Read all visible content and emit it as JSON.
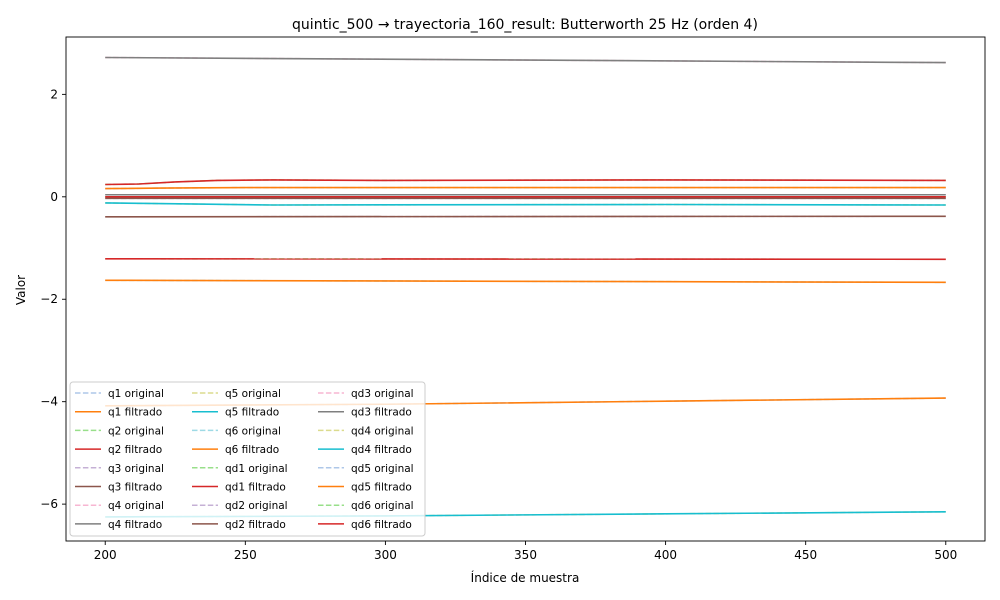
{
  "chart_data": {
    "type": "line",
    "title": "quintic_500 → trayectoria_160_result: Butterworth 25 Hz (orden 4)",
    "xlabel": "Índice de muestra",
    "ylabel": "Valor",
    "xlim": [
      186,
      514
    ],
    "ylim": [
      -6.72,
      3.12
    ],
    "xticks": [
      200,
      250,
      300,
      350,
      400,
      450,
      500
    ],
    "yticks": [
      -6,
      -4,
      -2,
      0,
      2
    ],
    "ytick_labels": [
      "−6",
      "−4",
      "−2",
      "0",
      "2"
    ],
    "grid": false,
    "legend": {
      "placement": "lower-left",
      "columns": 3
    },
    "series": [
      {
        "name": "q1 original",
        "color": "#aec7e8",
        "dashed": true,
        "x": [
          200,
          300,
          400,
          500
        ],
        "values": [
          -4.08,
          -4.05,
          -3.99,
          -3.93
        ]
      },
      {
        "name": "q1 filtrado",
        "color": "#ff7f0e",
        "dashed": false,
        "x": [
          200,
          300,
          400,
          500
        ],
        "values": [
          -4.08,
          -4.05,
          -3.99,
          -3.93
        ]
      },
      {
        "name": "q2 original",
        "color": "#98df8a",
        "dashed": true,
        "x": [
          200,
          500
        ],
        "values": [
          -1.21,
          -1.22
        ]
      },
      {
        "name": "q2 filtrado",
        "color": "#d62728",
        "dashed": false,
        "x": [
          200,
          500
        ],
        "values": [
          -1.21,
          -1.22
        ]
      },
      {
        "name": "q3 original",
        "color": "#c5b0d5",
        "dashed": true,
        "x": [
          200,
          500
        ],
        "values": [
          -0.39,
          -0.38
        ]
      },
      {
        "name": "q3 filtrado",
        "color": "#8c564b",
        "dashed": false,
        "x": [
          200,
          500
        ],
        "values": [
          -0.39,
          -0.38
        ]
      },
      {
        "name": "q4 original",
        "color": "#f7b6d2",
        "dashed": true,
        "x": [
          200,
          500
        ],
        "values": [
          2.72,
          2.62
        ]
      },
      {
        "name": "q4 filtrado",
        "color": "#7f7f7f",
        "dashed": false,
        "x": [
          200,
          500
        ],
        "values": [
          2.72,
          2.62
        ]
      },
      {
        "name": "q5 original",
        "color": "#dbdb8d",
        "dashed": true,
        "x": [
          200,
          300,
          400,
          500
        ],
        "values": [
          -6.25,
          -6.23,
          -6.19,
          -6.15
        ]
      },
      {
        "name": "q5 filtrado",
        "color": "#17becf",
        "dashed": false,
        "x": [
          200,
          300,
          400,
          500
        ],
        "values": [
          -6.25,
          -6.23,
          -6.19,
          -6.15
        ]
      },
      {
        "name": "q6 original",
        "color": "#9edae5",
        "dashed": true,
        "x": [
          200,
          500
        ],
        "values": [
          -1.63,
          -1.67
        ]
      },
      {
        "name": "q6 filtrado",
        "color": "#ff7f0e",
        "dashed": false,
        "x": [
          200,
          500
        ],
        "values": [
          -1.63,
          -1.67
        ]
      },
      {
        "name": "qd1 original",
        "color": "#98df8a",
        "dashed": true,
        "x": [
          200,
          500
        ],
        "values": [
          0.0,
          0.0
        ]
      },
      {
        "name": "qd1 filtrado",
        "color": "#d62728",
        "dashed": false,
        "x": [
          200,
          500
        ],
        "values": [
          0.0,
          0.0
        ]
      },
      {
        "name": "qd2 original",
        "color": "#c5b0d5",
        "dashed": true,
        "x": [
          200,
          500
        ],
        "values": [
          -0.03,
          -0.03
        ]
      },
      {
        "name": "qd2 filtrado",
        "color": "#8c564b",
        "dashed": false,
        "x": [
          200,
          500
        ],
        "values": [
          -0.03,
          -0.03
        ]
      },
      {
        "name": "qd3 original",
        "color": "#f7b6d2",
        "dashed": true,
        "x": [
          200,
          500
        ],
        "values": [
          0.04,
          0.04
        ]
      },
      {
        "name": "qd3 filtrado",
        "color": "#7f7f7f",
        "dashed": false,
        "x": [
          200,
          500
        ],
        "values": [
          0.04,
          0.04
        ]
      },
      {
        "name": "qd4 original",
        "color": "#dbdb8d",
        "dashed": true,
        "x": [
          200,
          230,
          260,
          400,
          500
        ],
        "values": [
          -0.12,
          -0.14,
          -0.16,
          -0.15,
          -0.16
        ]
      },
      {
        "name": "qd4 filtrado",
        "color": "#17becf",
        "dashed": false,
        "x": [
          200,
          230,
          260,
          400,
          500
        ],
        "values": [
          -0.12,
          -0.14,
          -0.16,
          -0.15,
          -0.16
        ]
      },
      {
        "name": "qd5 original",
        "color": "#aec7e8",
        "dashed": true,
        "x": [
          200,
          220,
          250,
          300,
          400,
          500
        ],
        "values": [
          0.16,
          0.17,
          0.18,
          0.18,
          0.18,
          0.18
        ]
      },
      {
        "name": "qd5 filtrado",
        "color": "#ff7f0e",
        "dashed": false,
        "x": [
          200,
          220,
          250,
          300,
          400,
          500
        ],
        "values": [
          0.16,
          0.17,
          0.18,
          0.18,
          0.18,
          0.18
        ]
      },
      {
        "name": "qd6 original",
        "color": "#98df8a",
        "dashed": true,
        "x": [
          200,
          212,
          225,
          240,
          260,
          300,
          400,
          500
        ],
        "values": [
          0.24,
          0.25,
          0.29,
          0.32,
          0.33,
          0.32,
          0.33,
          0.32
        ]
      },
      {
        "name": "qd6 filtrado",
        "color": "#d62728",
        "dashed": false,
        "x": [
          200,
          212,
          225,
          240,
          260,
          300,
          400,
          500
        ],
        "values": [
          0.24,
          0.25,
          0.29,
          0.32,
          0.33,
          0.32,
          0.33,
          0.32
        ]
      }
    ]
  }
}
